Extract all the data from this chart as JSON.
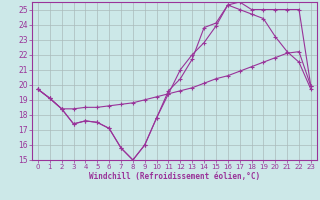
{
  "background_color": "#cce8e8",
  "grid_color": "#aabbbb",
  "line_color": "#993399",
  "xlabel": "Windchill (Refroidissement éolien,°C)",
  "xlim": [
    -0.5,
    23.5
  ],
  "ylim": [
    15,
    25.5
  ],
  "yticks": [
    15,
    16,
    17,
    18,
    19,
    20,
    21,
    22,
    23,
    24,
    25
  ],
  "xticks": [
    0,
    1,
    2,
    3,
    4,
    5,
    6,
    7,
    8,
    9,
    10,
    11,
    12,
    13,
    14,
    15,
    16,
    17,
    18,
    19,
    20,
    21,
    22,
    23
  ],
  "line1_x": [
    0,
    1,
    2,
    3,
    4,
    5,
    6,
    7,
    8,
    9,
    10,
    11,
    12,
    13,
    14,
    15,
    16,
    17,
    18,
    19,
    20,
    21,
    22,
    23
  ],
  "line1_y": [
    19.7,
    19.1,
    18.4,
    17.4,
    17.6,
    17.5,
    17.1,
    15.8,
    15.0,
    16.0,
    17.8,
    19.6,
    20.4,
    21.7,
    23.8,
    24.1,
    25.3,
    25.0,
    24.7,
    24.4,
    23.2,
    22.2,
    21.5,
    19.7
  ],
  "line2_x": [
    0,
    1,
    2,
    3,
    4,
    5,
    6,
    7,
    8,
    9,
    10,
    11,
    12,
    13,
    14,
    15,
    16,
    17,
    18,
    19,
    20,
    21,
    22,
    23
  ],
  "line2_y": [
    19.7,
    19.1,
    18.4,
    18.4,
    18.5,
    18.5,
    18.6,
    18.7,
    18.8,
    19.0,
    19.2,
    19.4,
    19.6,
    19.8,
    20.1,
    20.4,
    20.6,
    20.9,
    21.2,
    21.5,
    21.8,
    22.1,
    22.2,
    19.9
  ],
  "line3_x": [
    0,
    1,
    2,
    3,
    4,
    5,
    6,
    7,
    8,
    9,
    10,
    11,
    12,
    13,
    14,
    15,
    16,
    17,
    18,
    19,
    20,
    21,
    22,
    23
  ],
  "line3_y": [
    19.7,
    19.1,
    18.4,
    17.4,
    17.6,
    17.5,
    17.1,
    15.8,
    15.0,
    16.0,
    17.8,
    19.4,
    21.0,
    22.0,
    22.8,
    23.9,
    25.3,
    25.5,
    25.0,
    25.0,
    25.0,
    25.0,
    25.0,
    19.9
  ]
}
